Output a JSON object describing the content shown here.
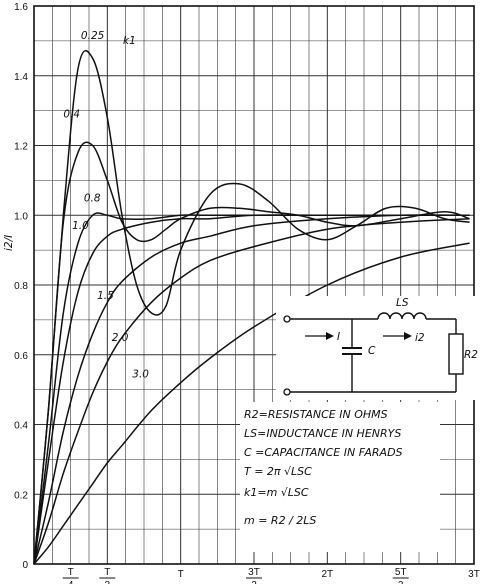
{
  "chart_data": {
    "type": "line",
    "title": "",
    "ylabel": "i2/I",
    "xlabel": "",
    "ylim": [
      0,
      1.6
    ],
    "xlim": [
      0,
      3
    ],
    "grid": true,
    "x_ticks": [
      {
        "value": 0.25,
        "num": "T",
        "den": "4"
      },
      {
        "value": 0.5,
        "num": "T",
        "den": "2"
      },
      {
        "value": 1.0,
        "label": "T"
      },
      {
        "value": 1.5,
        "num": "3T",
        "den": "2"
      },
      {
        "value": 2.0,
        "label": "2T"
      },
      {
        "value": 2.5,
        "num": "5T",
        "den": "2"
      },
      {
        "value": 3.0,
        "label": "3T"
      }
    ],
    "y_ticks": [
      {
        "value": 0,
        "label": "0"
      },
      {
        "value": 0.2,
        "label": "0.2"
      },
      {
        "value": 0.4,
        "label": "0.4"
      },
      {
        "value": 0.6,
        "label": "0.6"
      },
      {
        "value": 0.8,
        "label": "0.8"
      },
      {
        "value": 1.0,
        "label": "1.0"
      },
      {
        "value": 1.2,
        "label": "1.2"
      },
      {
        "value": 1.4,
        "label": "1.4"
      },
      {
        "value": 1.6,
        "label": "1.6"
      }
    ],
    "parameter_label": "k1",
    "series": [
      {
        "name": "0.25",
        "x": [
          0,
          0.1,
          0.2,
          0.3,
          0.4,
          0.5,
          0.6,
          0.7,
          0.8,
          0.9,
          1.0,
          1.2,
          1.4,
          1.6,
          1.8,
          2.0,
          2.2,
          2.4,
          2.6,
          2.8,
          2.97
        ],
        "y": [
          0,
          0.45,
          1.0,
          1.42,
          1.45,
          1.28,
          1.0,
          0.8,
          0.72,
          0.74,
          0.9,
          1.06,
          1.09,
          1.04,
          0.96,
          0.93,
          0.97,
          1.02,
          1.02,
          0.99,
          0.98
        ]
      },
      {
        "name": "0.4",
        "x": [
          0,
          0.1,
          0.2,
          0.3,
          0.4,
          0.5,
          0.6,
          0.7,
          0.8,
          0.9,
          1.0,
          1.2,
          1.4,
          1.6,
          1.8,
          2.0,
          2.2,
          2.5,
          2.8,
          2.97
        ],
        "y": [
          0,
          0.45,
          0.98,
          1.18,
          1.2,
          1.1,
          0.98,
          0.93,
          0.93,
          0.96,
          0.99,
          1.02,
          1.02,
          1.01,
          1.0,
          0.98,
          0.97,
          0.99,
          1.01,
          0.99
        ]
      },
      {
        "name": "0.8",
        "x": [
          0,
          0.1,
          0.2,
          0.3,
          0.4,
          0.5,
          0.6,
          0.8,
          1.0,
          1.2,
          1.5,
          2.0,
          2.5,
          2.97
        ],
        "y": [
          0,
          0.35,
          0.72,
          0.92,
          1.0,
          1.0,
          0.99,
          0.99,
          1.0,
          1.0,
          1.0,
          1.0,
          1.0,
          1.0
        ]
      },
      {
        "name": "1.0",
        "x": [
          0,
          0.1,
          0.2,
          0.3,
          0.4,
          0.5,
          0.6,
          0.8,
          1.0,
          1.2,
          1.5,
          2.0,
          2.5,
          2.97
        ],
        "y": [
          0,
          0.3,
          0.58,
          0.78,
          0.89,
          0.94,
          0.96,
          0.98,
          0.99,
          0.99,
          1.0,
          1.0,
          1.0,
          1.0
        ]
      },
      {
        "name": "1.5",
        "x": [
          0,
          0.1,
          0.2,
          0.3,
          0.4,
          0.5,
          0.6,
          0.8,
          1.0,
          1.2,
          1.5,
          2.0,
          2.5,
          2.97
        ],
        "y": [
          0,
          0.18,
          0.38,
          0.54,
          0.66,
          0.75,
          0.81,
          0.88,
          0.92,
          0.94,
          0.97,
          0.99,
          1.0,
          1.0
        ]
      },
      {
        "name": "2.0",
        "x": [
          0,
          0.1,
          0.2,
          0.3,
          0.4,
          0.5,
          0.6,
          0.8,
          1.0,
          1.2,
          1.5,
          2.0,
          2.5,
          2.97
        ],
        "y": [
          0,
          0.12,
          0.26,
          0.38,
          0.49,
          0.58,
          0.65,
          0.75,
          0.82,
          0.87,
          0.91,
          0.96,
          0.98,
          0.99
        ]
      },
      {
        "name": "3.0",
        "x": [
          0,
          0.1,
          0.2,
          0.3,
          0.4,
          0.5,
          0.6,
          0.8,
          1.0,
          1.2,
          1.5,
          2.0,
          2.5,
          2.97
        ],
        "y": [
          0,
          0.05,
          0.11,
          0.17,
          0.23,
          0.29,
          0.34,
          0.44,
          0.52,
          0.59,
          0.68,
          0.8,
          0.88,
          0.92
        ]
      }
    ]
  },
  "circuit": {
    "I": "I",
    "C": "C",
    "Ls": "LS",
    "i2": "i2",
    "R2": "R2"
  },
  "legend": [
    "R2=RESISTANCE IN OHMS",
    "LS=INDUCTANCE IN HENRYS",
    "C =CAPACITANCE IN FARADS",
    "T = 2π √LSC",
    "k1=m √LSC",
    "m = R2 / 2LS"
  ],
  "colors": {
    "ink": "#111111",
    "grid": "#222222",
    "background": "#ffffff"
  }
}
